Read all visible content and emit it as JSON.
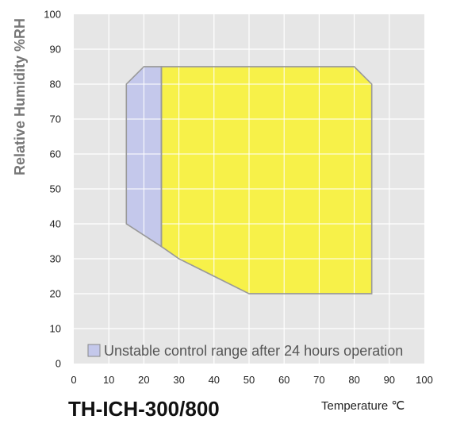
{
  "chart_data": {
    "type": "area",
    "title": "TH-ICH-300/800",
    "xlabel": "Temperature ℃",
    "ylabel": "Relative Humidity %RH",
    "xlim": [
      0,
      100
    ],
    "ylim": [
      0,
      100
    ],
    "xticks": [
      0,
      10,
      20,
      30,
      40,
      50,
      60,
      70,
      80,
      90,
      100
    ],
    "yticks": [
      0,
      10,
      20,
      30,
      40,
      50,
      60,
      70,
      80,
      90,
      100
    ],
    "grid": true,
    "legend_position": "bottom-left",
    "series": [
      {
        "name": "Unstable control range after 24 hours operation",
        "color": "#c4c8eb",
        "polygon": [
          [
            15,
            80
          ],
          [
            20,
            85
          ],
          [
            25,
            85
          ],
          [
            25,
            33.5
          ],
          [
            15,
            40
          ]
        ]
      },
      {
        "color": "#f7f149",
        "polygon": [
          [
            25,
            85
          ],
          [
            80,
            85
          ],
          [
            85,
            80
          ],
          [
            85,
            20
          ],
          [
            50,
            20
          ],
          [
            30,
            30
          ],
          [
            25,
            33.5
          ]
        ]
      }
    ]
  }
}
